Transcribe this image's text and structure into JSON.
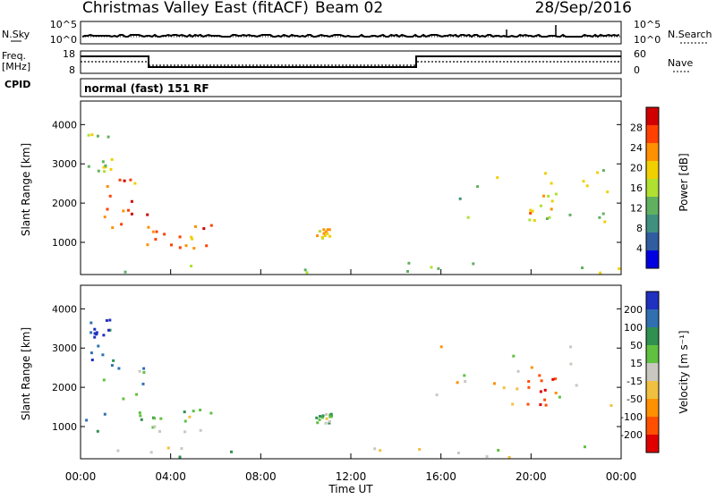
{
  "header": {
    "title": "Christmas Valley East (fitACF)",
    "beam": "Beam 02",
    "date": "28/Sep/2016"
  },
  "top_panels": {
    "nsky_label": "N.Sky",
    "nsky_ticks": [
      "10^5",
      "10^0"
    ],
    "nsearch_label": "N.Search",
    "nsearch_ticks": [
      "10^5",
      "10^0"
    ],
    "freq_label_line1": "Freq.",
    "freq_label_line2": "[MHz]",
    "freq_ticks": [
      "18",
      "8"
    ],
    "nave_label": "Nave",
    "nave_ticks": [
      "60",
      "0"
    ],
    "cpid_label": "CPID",
    "cpid_text": "normal (fast) 151 RF"
  },
  "chart_data": [
    {
      "type": "heatmap",
      "name": "power",
      "ylabel": "Slant Range [km]",
      "ylim": [
        180,
        4600
      ],
      "yticks": [
        "4000",
        "3000",
        "2000",
        "1000"
      ],
      "xlabel": "Time UT",
      "xticks": [
        "00:00",
        "04:00",
        "08:00",
        "12:00",
        "16:00",
        "20:00",
        "00:00"
      ],
      "colorbar": {
        "label": "Power [dB]",
        "ticks": [
          "28",
          "24",
          "20",
          "16",
          "12",
          "8",
          "4"
        ],
        "colors": [
          "#d00000",
          "#ff4000",
          "#ff9000",
          "#f0d000",
          "#b0e030",
          "#60b060",
          "#409080",
          "#305ca0",
          "#0000e0"
        ]
      },
      "regions": [
        {
          "t0": 0.1,
          "t1": 3.2,
          "r0": 800,
          "r1": 2700,
          "level": 0.8
        },
        {
          "t0": 0.3,
          "t1": 1.4,
          "r0": 2600,
          "r1": 3800,
          "level": 0.5
        },
        {
          "t0": 2.5,
          "t1": 5.8,
          "r0": 800,
          "r1": 1400,
          "level": 0.75
        },
        {
          "t0": 0.0,
          "t1": 24.0,
          "r0": 180,
          "r1": 450,
          "level": 0.55
        },
        {
          "t0": 10.4,
          "t1": 11.1,
          "r0": 1050,
          "r1": 1300,
          "level": 0.6
        },
        {
          "t0": 15.7,
          "t1": 24.0,
          "r0": 1400,
          "r1": 3100,
          "level": 0.5
        },
        {
          "t0": 19.8,
          "t1": 21.3,
          "r0": 1500,
          "r1": 2300,
          "level": 0.65
        }
      ]
    },
    {
      "type": "heatmap",
      "name": "velocity",
      "ylabel": "Slant Range [km]",
      "ylim": [
        180,
        4600
      ],
      "yticks": [
        "4000",
        "3000",
        "2000",
        "1000"
      ],
      "xlabel": "Time UT",
      "xticks": [
        "00:00",
        "04:00",
        "08:00",
        "12:00",
        "16:00",
        "20:00",
        "00:00"
      ],
      "colorbar": {
        "label": "Velocity [m s⁻¹]",
        "ticks": [
          "200",
          "100",
          "50",
          "15",
          "-15",
          "-50",
          "-100",
          "-200"
        ],
        "colors": [
          "#2030c0",
          "#3070b0",
          "#309050",
          "#60c040",
          "#c8c8c0",
          "#f0c040",
          "#ff9000",
          "#ff5000",
          "#e00000"
        ]
      },
      "regions": [
        {
          "t0": 0.1,
          "t1": 3.2,
          "r0": 800,
          "r1": 2700,
          "level": 0.7
        },
        {
          "t0": 0.3,
          "t1": 1.4,
          "r0": 2600,
          "r1": 3800,
          "level": 0.9
        },
        {
          "t0": 2.5,
          "t1": 5.8,
          "r0": 800,
          "r1": 1400,
          "level": 0.6
        },
        {
          "t0": 0.0,
          "t1": 24.0,
          "r0": 180,
          "r1": 450,
          "level": 0.55
        },
        {
          "t0": 10.4,
          "t1": 11.1,
          "r0": 1050,
          "r1": 1300,
          "level": 0.6
        },
        {
          "t0": 15.7,
          "t1": 24.0,
          "r0": 1400,
          "r1": 3100,
          "level": 0.45
        },
        {
          "t0": 19.8,
          "t1": 21.3,
          "r0": 1500,
          "r1": 2300,
          "level": 0.15
        }
      ]
    }
  ]
}
